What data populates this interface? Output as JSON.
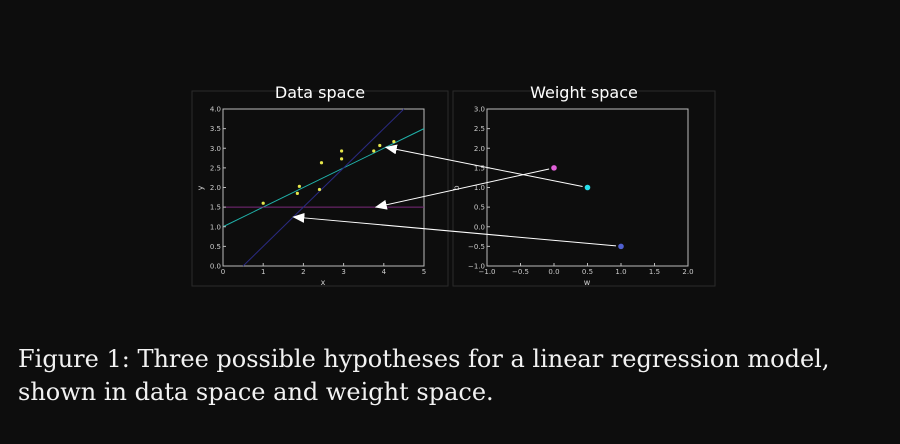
{
  "caption": {
    "label": "Figure 1:",
    "text": "Three possible hypotheses for a linear regression model, shown in data space and weight space."
  },
  "colors": {
    "background": "#0d0d0d",
    "points": "#e6e64a",
    "line_cyan": "#20b2aa",
    "line_purple": "#7b2a7b",
    "line_navy": "#2a2a80",
    "ws_cyan": "#27e0ec",
    "ws_pink": "#e060d8",
    "ws_blue": "#5060d0",
    "arrow": "#ffffff"
  },
  "chart_data": [
    {
      "type": "scatter",
      "title": "Data space",
      "xlabel": "x",
      "ylabel": "y",
      "xlim": [
        0,
        5
      ],
      "ylim": [
        0,
        4
      ],
      "xticks": [
        "0",
        "1",
        "2",
        "3",
        "4",
        "5"
      ],
      "yticks": [
        "0.0",
        "0.5",
        "1.0",
        "1.5",
        "2.0",
        "2.5",
        "3.0",
        "3.5",
        "4.0"
      ],
      "points": [
        {
          "x": 1.0,
          "y": 1.6
        },
        {
          "x": 1.85,
          "y": 1.85
        },
        {
          "x": 1.9,
          "y": 2.03
        },
        {
          "x": 2.4,
          "y": 1.95
        },
        {
          "x": 2.45,
          "y": 2.63
        },
        {
          "x": 2.95,
          "y": 2.73
        },
        {
          "x": 2.95,
          "y": 2.93
        },
        {
          "x": 3.75,
          "y": 2.93
        },
        {
          "x": 3.9,
          "y": 3.07
        },
        {
          "x": 4.25,
          "y": 3.17
        }
      ],
      "lines": [
        {
          "w": 0.5,
          "b": 1.0,
          "color": "#20b2aa"
        },
        {
          "w": 0.0,
          "b": 1.5,
          "color": "#7b2a7b"
        },
        {
          "w": 1.0,
          "b": -0.5,
          "color": "#2a2a80"
        }
      ],
      "grid": false
    },
    {
      "type": "scatter",
      "title": "Weight space",
      "xlabel": "w",
      "ylabel": "b",
      "xlim": [
        -1.0,
        2.0
      ],
      "ylim": [
        -1.0,
        3.0
      ],
      "xticks": [
        "−1.0",
        "−0.5",
        "0.0",
        "0.5",
        "1.0",
        "1.5",
        "2.0"
      ],
      "yticks": [
        "−1.0",
        "−0.5",
        "0.0",
        "0.5",
        "1.0",
        "1.5",
        "2.0",
        "2.5",
        "3.0"
      ],
      "points": [
        {
          "w": 0.5,
          "b": 1.0,
          "color": "#27e0ec"
        },
        {
          "w": 0.0,
          "b": 1.5,
          "color": "#e060d8"
        },
        {
          "w": 1.0,
          "b": -0.5,
          "color": "#5060d0"
        }
      ],
      "grid": false
    }
  ]
}
